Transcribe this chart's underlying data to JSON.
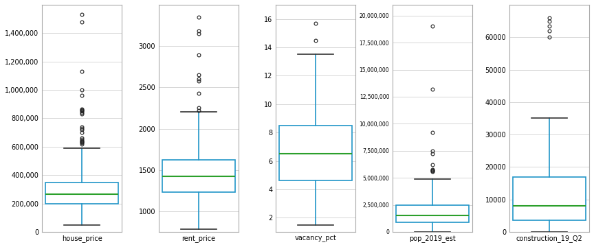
{
  "plots": [
    {
      "label": "house_price",
      "whislo": 50000,
      "q1": 200000,
      "med": 265000,
      "q3": 350000,
      "whishi": 590000,
      "fliers": [
        620000,
        630000,
        635000,
        640000,
        645000,
        650000,
        660000,
        700000,
        720000,
        730000,
        740000,
        830000,
        840000,
        850000,
        855000,
        860000,
        865000,
        960000,
        1000000,
        1130000,
        1480000,
        1530000
      ],
      "ylim": [
        0,
        1600000
      ],
      "yticks": [
        0,
        200000,
        400000,
        600000,
        800000,
        1000000,
        1200000,
        1400000
      ],
      "yticklabels": [
        "0",
        "200,000",
        "400,000",
        "600,000",
        "800,000",
        "1,000,000",
        "1,200,000",
        "1,400,000"
      ],
      "ylabel_fontsize": 7
    },
    {
      "label": "rent_price",
      "whislo": 780,
      "q1": 1230,
      "med": 1420,
      "q3": 1620,
      "whishi": 2200,
      "fliers": [
        2220,
        2250,
        2430,
        2580,
        2600,
        2650,
        2890,
        3150,
        3180,
        3350
      ],
      "ylim": [
        750,
        3500
      ],
      "yticks": [
        1000,
        1500,
        2000,
        2500,
        3000
      ],
      "yticklabels": [
        "1000",
        "1500",
        "2000",
        "2500",
        "3000"
      ],
      "ylabel_fontsize": 7
    },
    {
      "label": "vacancy_pct",
      "whislo": 1.5,
      "q1": 4.6,
      "med": 6.5,
      "q3": 8.5,
      "whishi": 13.5,
      "fliers": [
        14.5,
        15.7
      ],
      "ylim": [
        1,
        17
      ],
      "yticks": [
        2,
        4,
        6,
        8,
        10,
        12,
        14,
        16
      ],
      "yticklabels": [
        "2",
        "4",
        "6",
        "8",
        "10",
        "12",
        "14",
        "16"
      ],
      "ylabel_fontsize": 7
    },
    {
      "label": "pop_2019_est",
      "whislo": 0,
      "q1": 900000,
      "med": 1500000,
      "q3": 2500000,
      "whishi": 4900000,
      "fliers": [
        5600000,
        5650000,
        5700000,
        5750000,
        6200000,
        7200000,
        7500000,
        9200000,
        13200000,
        19000000
      ],
      "ylim": [
        0,
        21000000
      ],
      "yticks": [
        0,
        2500000,
        5000000,
        7500000,
        10000000,
        12500000,
        15000000,
        17500000,
        20000000
      ],
      "yticklabels": [
        "0",
        "2,500,000",
        "5,000,000",
        "7,500,000",
        "10,000,000",
        "12,500,000",
        "15,000,000",
        "17,500,000",
        "20,000,000"
      ],
      "ylabel_fontsize": 5.5
    },
    {
      "label": "construction_19_Q2",
      "whislo": 0,
      "q1": 3500,
      "med": 8000,
      "q3": 17000,
      "whishi": 35000,
      "fliers": [
        60000,
        62000,
        63500,
        65000,
        66000
      ],
      "ylim": [
        0,
        70000
      ],
      "yticks": [
        0,
        10000,
        20000,
        30000,
        40000,
        50000,
        60000
      ],
      "yticklabels": [
        "0",
        "10000",
        "20000",
        "30000",
        "40000",
        "50000",
        "60000"
      ],
      "ylabel_fontsize": 7
    }
  ],
  "box_color": "#2196c8",
  "median_color": "#2ca02c",
  "flier_marker": "o",
  "flier_markerfacecolor": "none",
  "flier_markeredgecolor": "#222222",
  "flier_markersize": 3.5,
  "background_color": "#ffffff",
  "grid_color": "#d0d0d0",
  "figsize": [
    8.64,
    3.6
  ],
  "dpi": 100,
  "box_width": 0.35
}
